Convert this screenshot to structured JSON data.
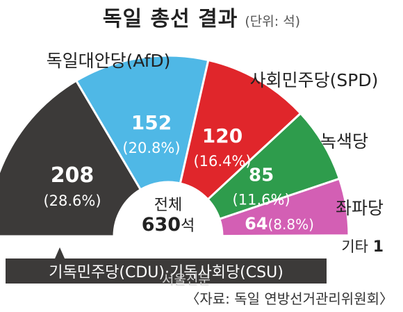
{
  "header": {
    "title": "독일 총선 결과",
    "unit": "(단위: 석)"
  },
  "center": {
    "label": "전체",
    "total": "630",
    "suffix": "석"
  },
  "chart_data": {
    "type": "pie",
    "title": "독일 총선 결과",
    "unit": "(단위: 석)",
    "total_seats": 630,
    "slices": [
      {
        "name": "기독민주당(CDU)·기독사회당(CSU)",
        "seats": 208,
        "percent": 28.6,
        "value_label": "208",
        "percent_label": "(28.6%)",
        "color": "#3c3a39"
      },
      {
        "name": "독일대안당(AfD)",
        "seats": 152,
        "percent": 20.8,
        "value_label": "152",
        "percent_label": "(20.8%)",
        "color": "#4fb8e6"
      },
      {
        "name": "사회민주당(SPD)",
        "seats": 120,
        "percent": 16.4,
        "value_label": "120",
        "percent_label": "(16.4%)",
        "color": "#e0262b"
      },
      {
        "name": "녹색당",
        "seats": 85,
        "percent": 11.6,
        "value_label": "85",
        "percent_label": "(11.6%)",
        "color": "#2e9c4c"
      },
      {
        "name": "좌파당",
        "seats": 64,
        "percent": 8.8,
        "value_label": "64",
        "percent_label": "(8.8%)",
        "color": "#d35fb4"
      },
      {
        "name": "기타",
        "seats": 1,
        "value_label": "1",
        "color": "#999999"
      }
    ]
  },
  "footer": {
    "source": "〈자료: 독일 연방선거관리위원회〉",
    "watermark": "서울신문"
  }
}
